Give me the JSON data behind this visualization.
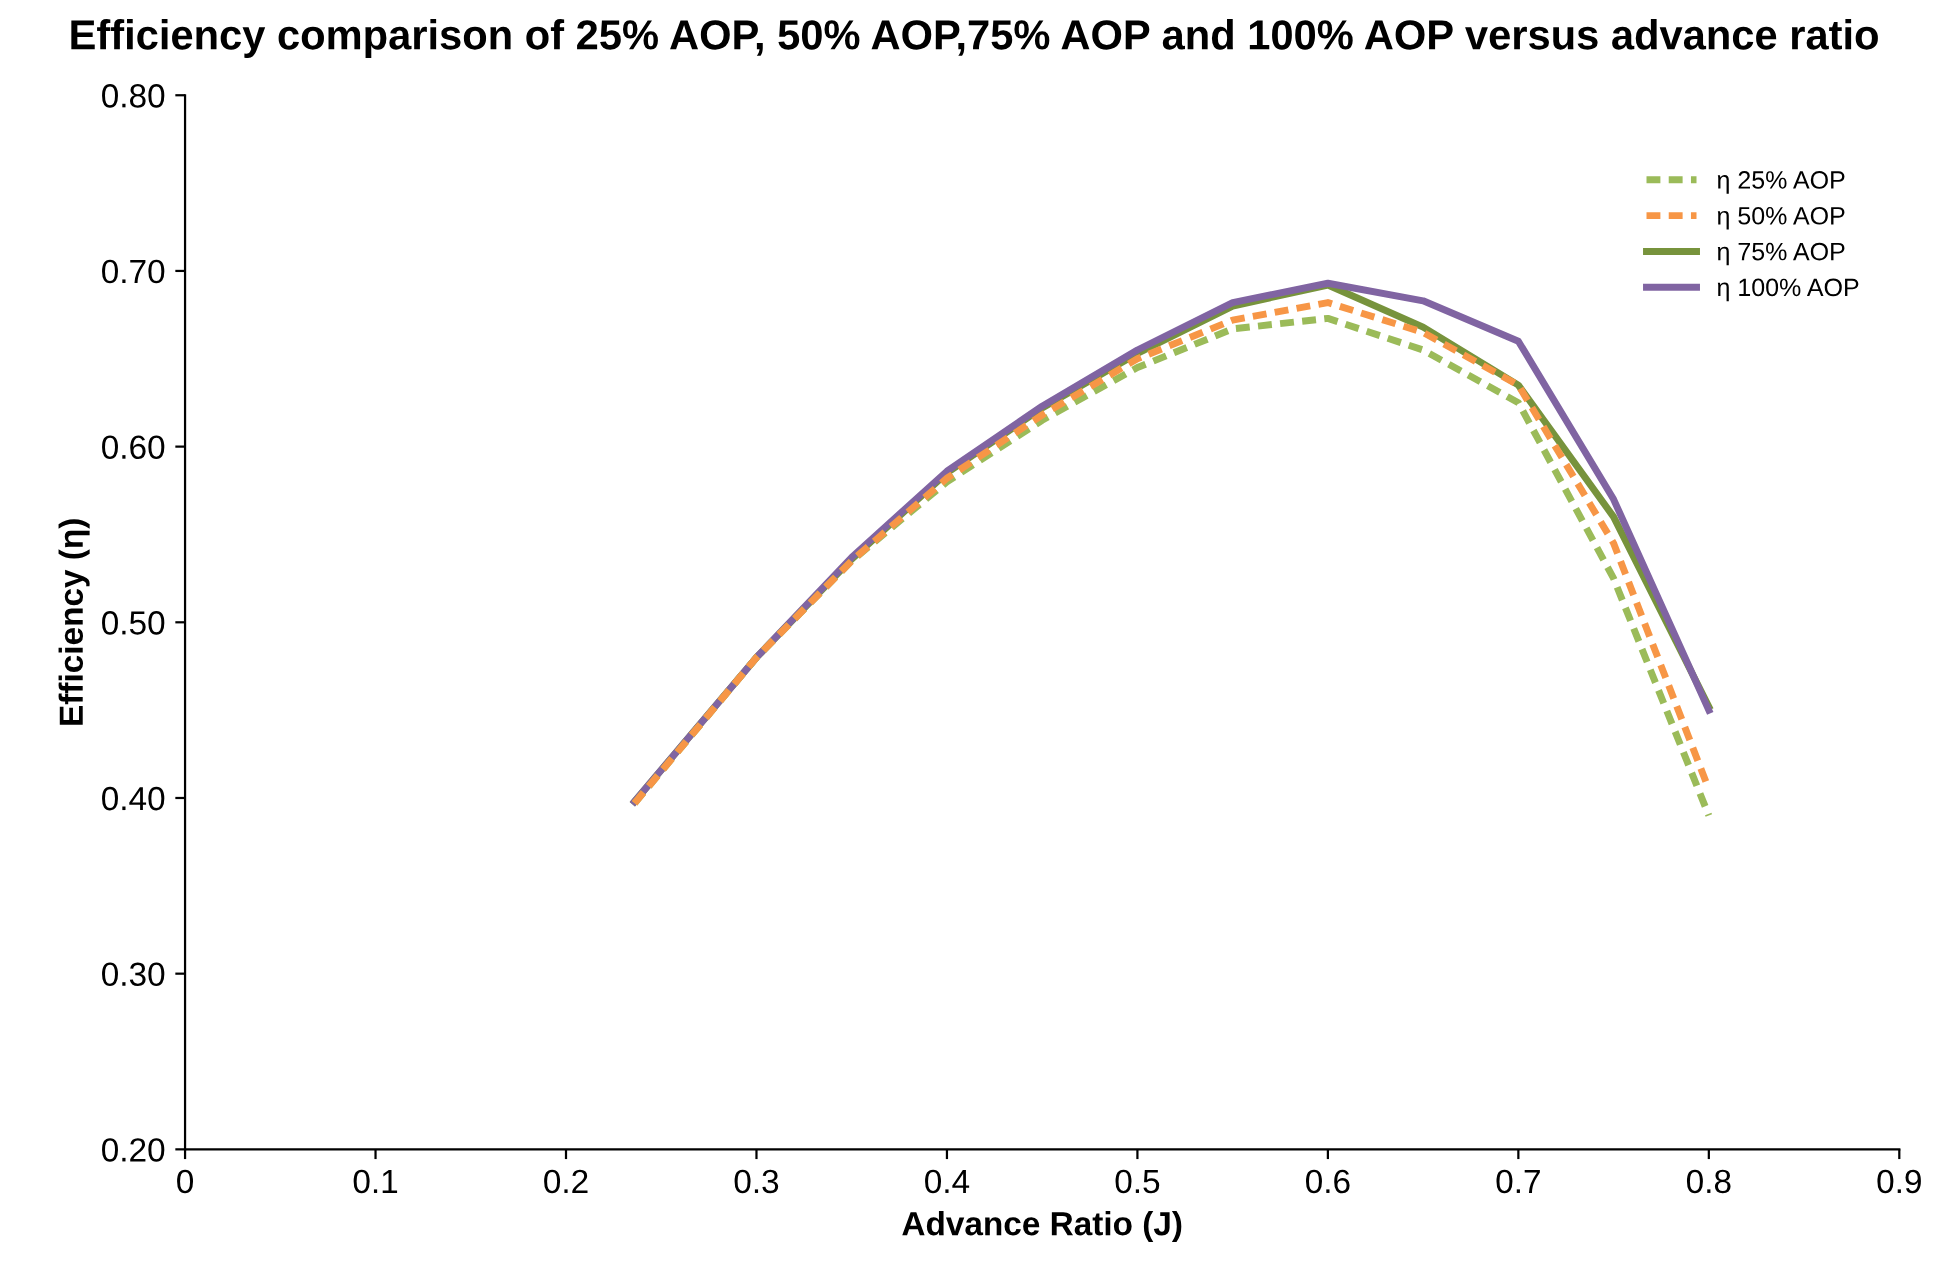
{
  "chart_data": {
    "type": "line",
    "title": "Efficiency comparison of 25% AOP, 50% AOP,75% AOP and 100% AOP versus advance ratio",
    "xlabel": "Advance Ratio (J)",
    "ylabel": "Efficiency (η)",
    "x": [
      0.236,
      0.3,
      0.35,
      0.4,
      0.45,
      0.5,
      0.55,
      0.6,
      0.65,
      0.7,
      0.75,
      0.8
    ],
    "series": [
      {
        "name": "η 25% AOP",
        "color": "#9bbb59",
        "line_style": "dashed",
        "values": [
          0.397,
          0.48,
          0.535,
          0.58,
          0.615,
          0.645,
          0.667,
          0.673,
          0.655,
          0.625,
          0.525,
          0.39
        ]
      },
      {
        "name": "η 50% AOP",
        "color": "#f79646",
        "line_style": "dashed",
        "values": [
          0.397,
          0.48,
          0.535,
          0.582,
          0.618,
          0.65,
          0.672,
          0.682,
          0.665,
          0.635,
          0.545,
          0.405
        ]
      },
      {
        "name": "η 75% AOP",
        "color": "#77933c",
        "line_style": "solid",
        "values": [
          0.398,
          0.48,
          0.536,
          0.585,
          0.622,
          0.653,
          0.68,
          0.692,
          0.668,
          0.635,
          0.56,
          0.452
        ]
      },
      {
        "name": "η 100% AOP",
        "color": "#8064a2",
        "line_style": "solid",
        "values": [
          0.398,
          0.48,
          0.537,
          0.586,
          0.623,
          0.655,
          0.682,
          0.693,
          0.683,
          0.66,
          0.57,
          0.45
        ]
      }
    ],
    "xlim": [
      0,
      0.9
    ],
    "xticks": [
      {
        "value": 0,
        "label": "0"
      },
      0.1,
      0.2,
      0.3,
      0.4,
      0.5,
      0.6,
      0.7,
      0.8,
      0.9
    ],
    "ylim": [
      0.2,
      0.8
    ],
    "yticks": [
      {
        "value": 0.2,
        "label": "0.20"
      },
      {
        "value": 0.3,
        "label": "0.30"
      },
      {
        "value": 0.4,
        "label": "0.40"
      },
      {
        "value": 0.5,
        "label": "0.50"
      },
      {
        "value": 0.6,
        "label": "0.60"
      },
      {
        "value": 0.7,
        "label": "0.70"
      },
      {
        "value": 0.8,
        "label": "0.80"
      }
    ],
    "grid": false,
    "legend": "top right",
    "marker": "none"
  }
}
